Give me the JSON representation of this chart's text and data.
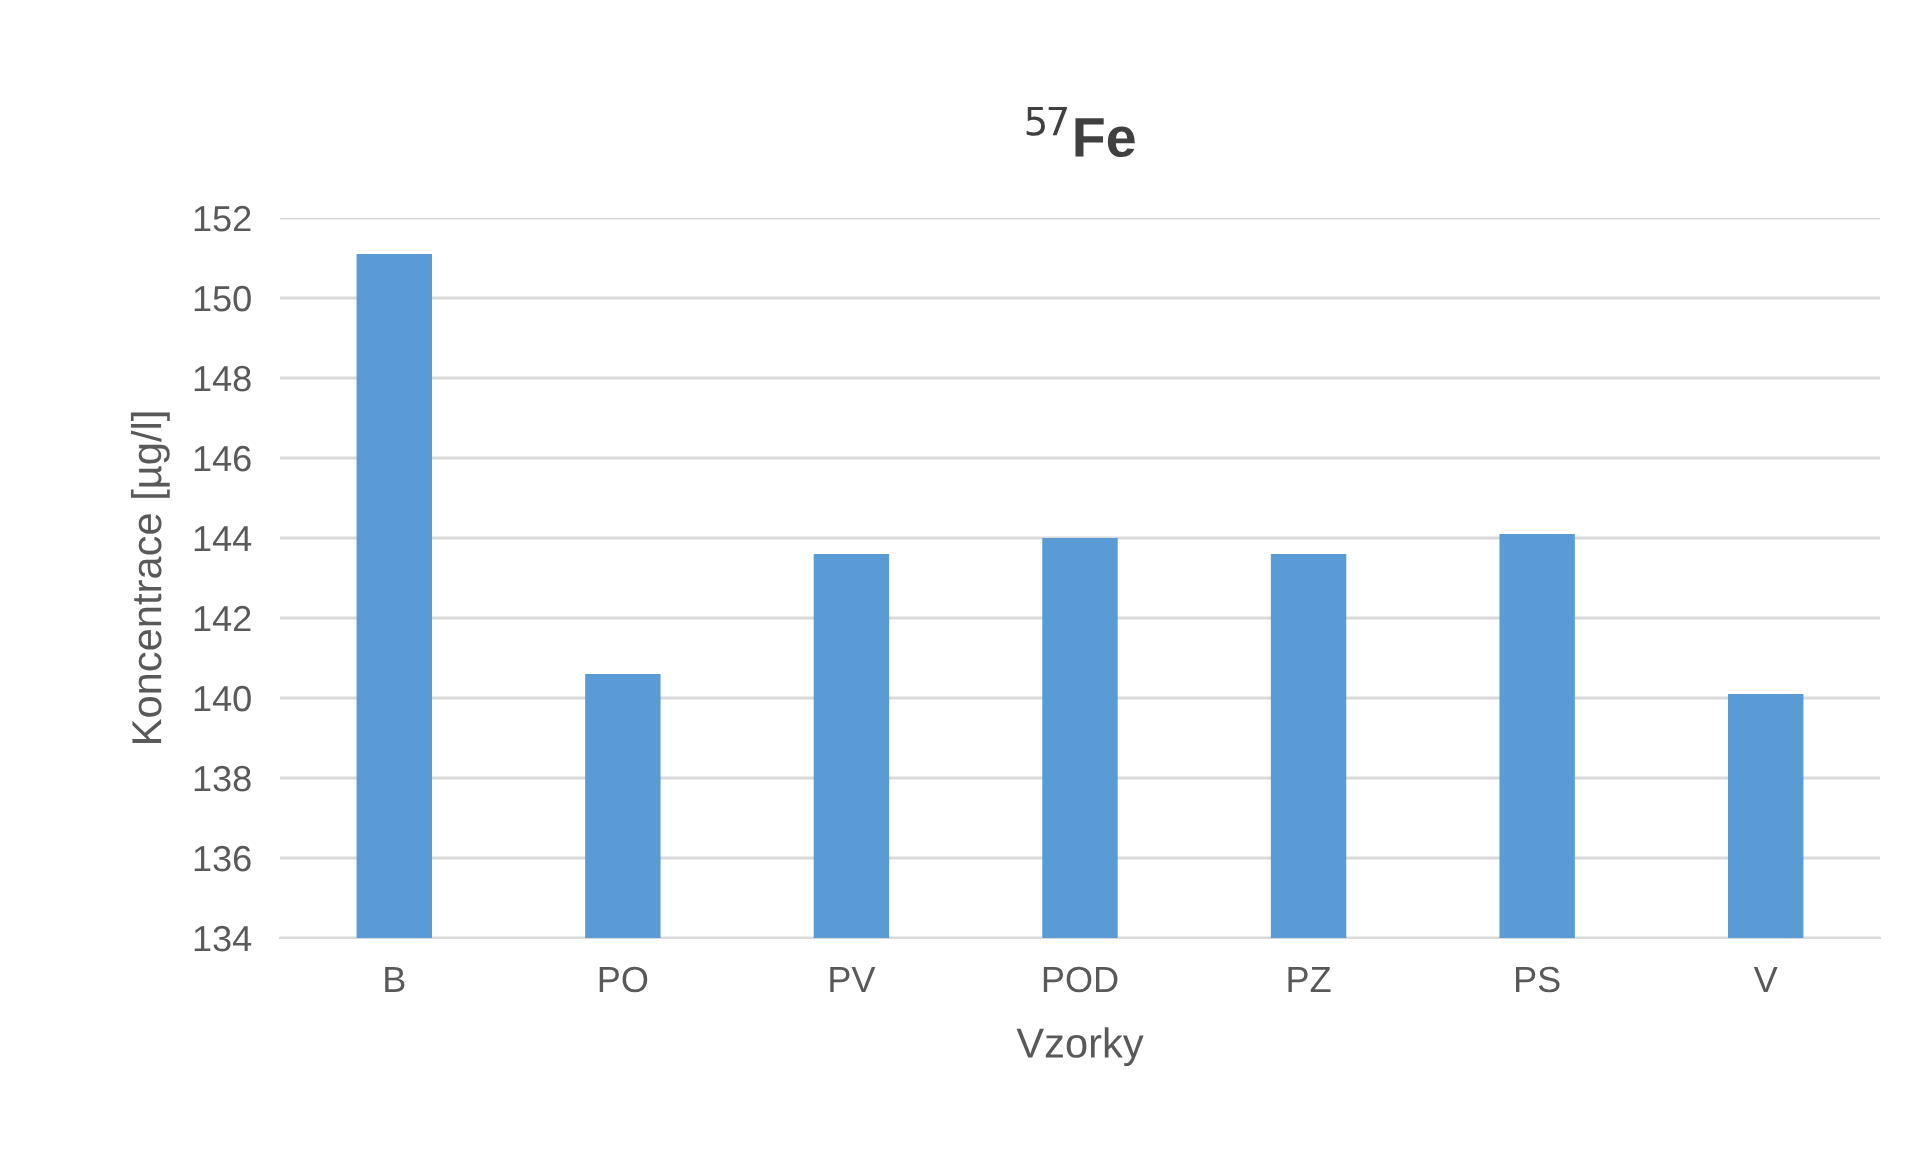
{
  "chart_data": {
    "type": "bar",
    "title": "$^{57}$Fe",
    "xlabel": "Vzorky",
    "ylabel": "Koncentrace [µg/l]",
    "categories": [
      "B",
      "PO",
      "PV",
      "POD",
      "PZ",
      "PS",
      "V"
    ],
    "values": [
      151.1,
      140.6,
      143.6,
      144.0,
      143.6,
      144.1,
      140.1
    ],
    "color": "#5b9bd5",
    "ylim": [
      134,
      152
    ],
    "yticks": [
      134,
      136,
      138,
      140,
      142,
      144,
      146,
      148,
      150,
      152
    ],
    "grid": "y"
  }
}
